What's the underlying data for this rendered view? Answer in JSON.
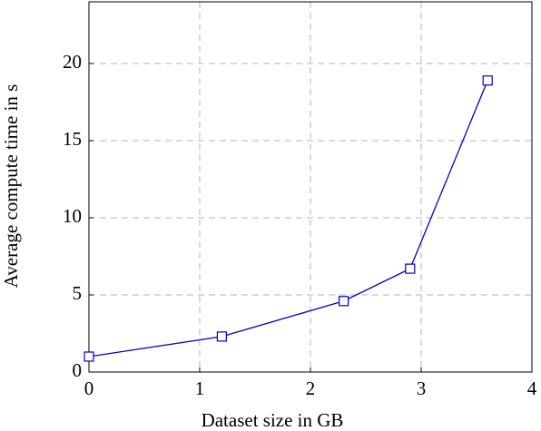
{
  "chart_data": {
    "type": "line",
    "xlabel": "Dataset size in GB",
    "ylabel": "Average compute time in s",
    "x": [
      0,
      1.2,
      2.3,
      2.9,
      3.6
    ],
    "series": [
      {
        "name": "compute time",
        "color": "#0000cc",
        "values": [
          1.0,
          2.3,
          4.6,
          6.7,
          18.9
        ]
      }
    ],
    "xlim": [
      0,
      4
    ],
    "xticks": [
      0,
      1,
      2,
      3,
      4
    ],
    "ylim": [
      0,
      24
    ],
    "yticks": [
      0,
      5,
      10,
      15,
      20
    ],
    "grid": true
  }
}
